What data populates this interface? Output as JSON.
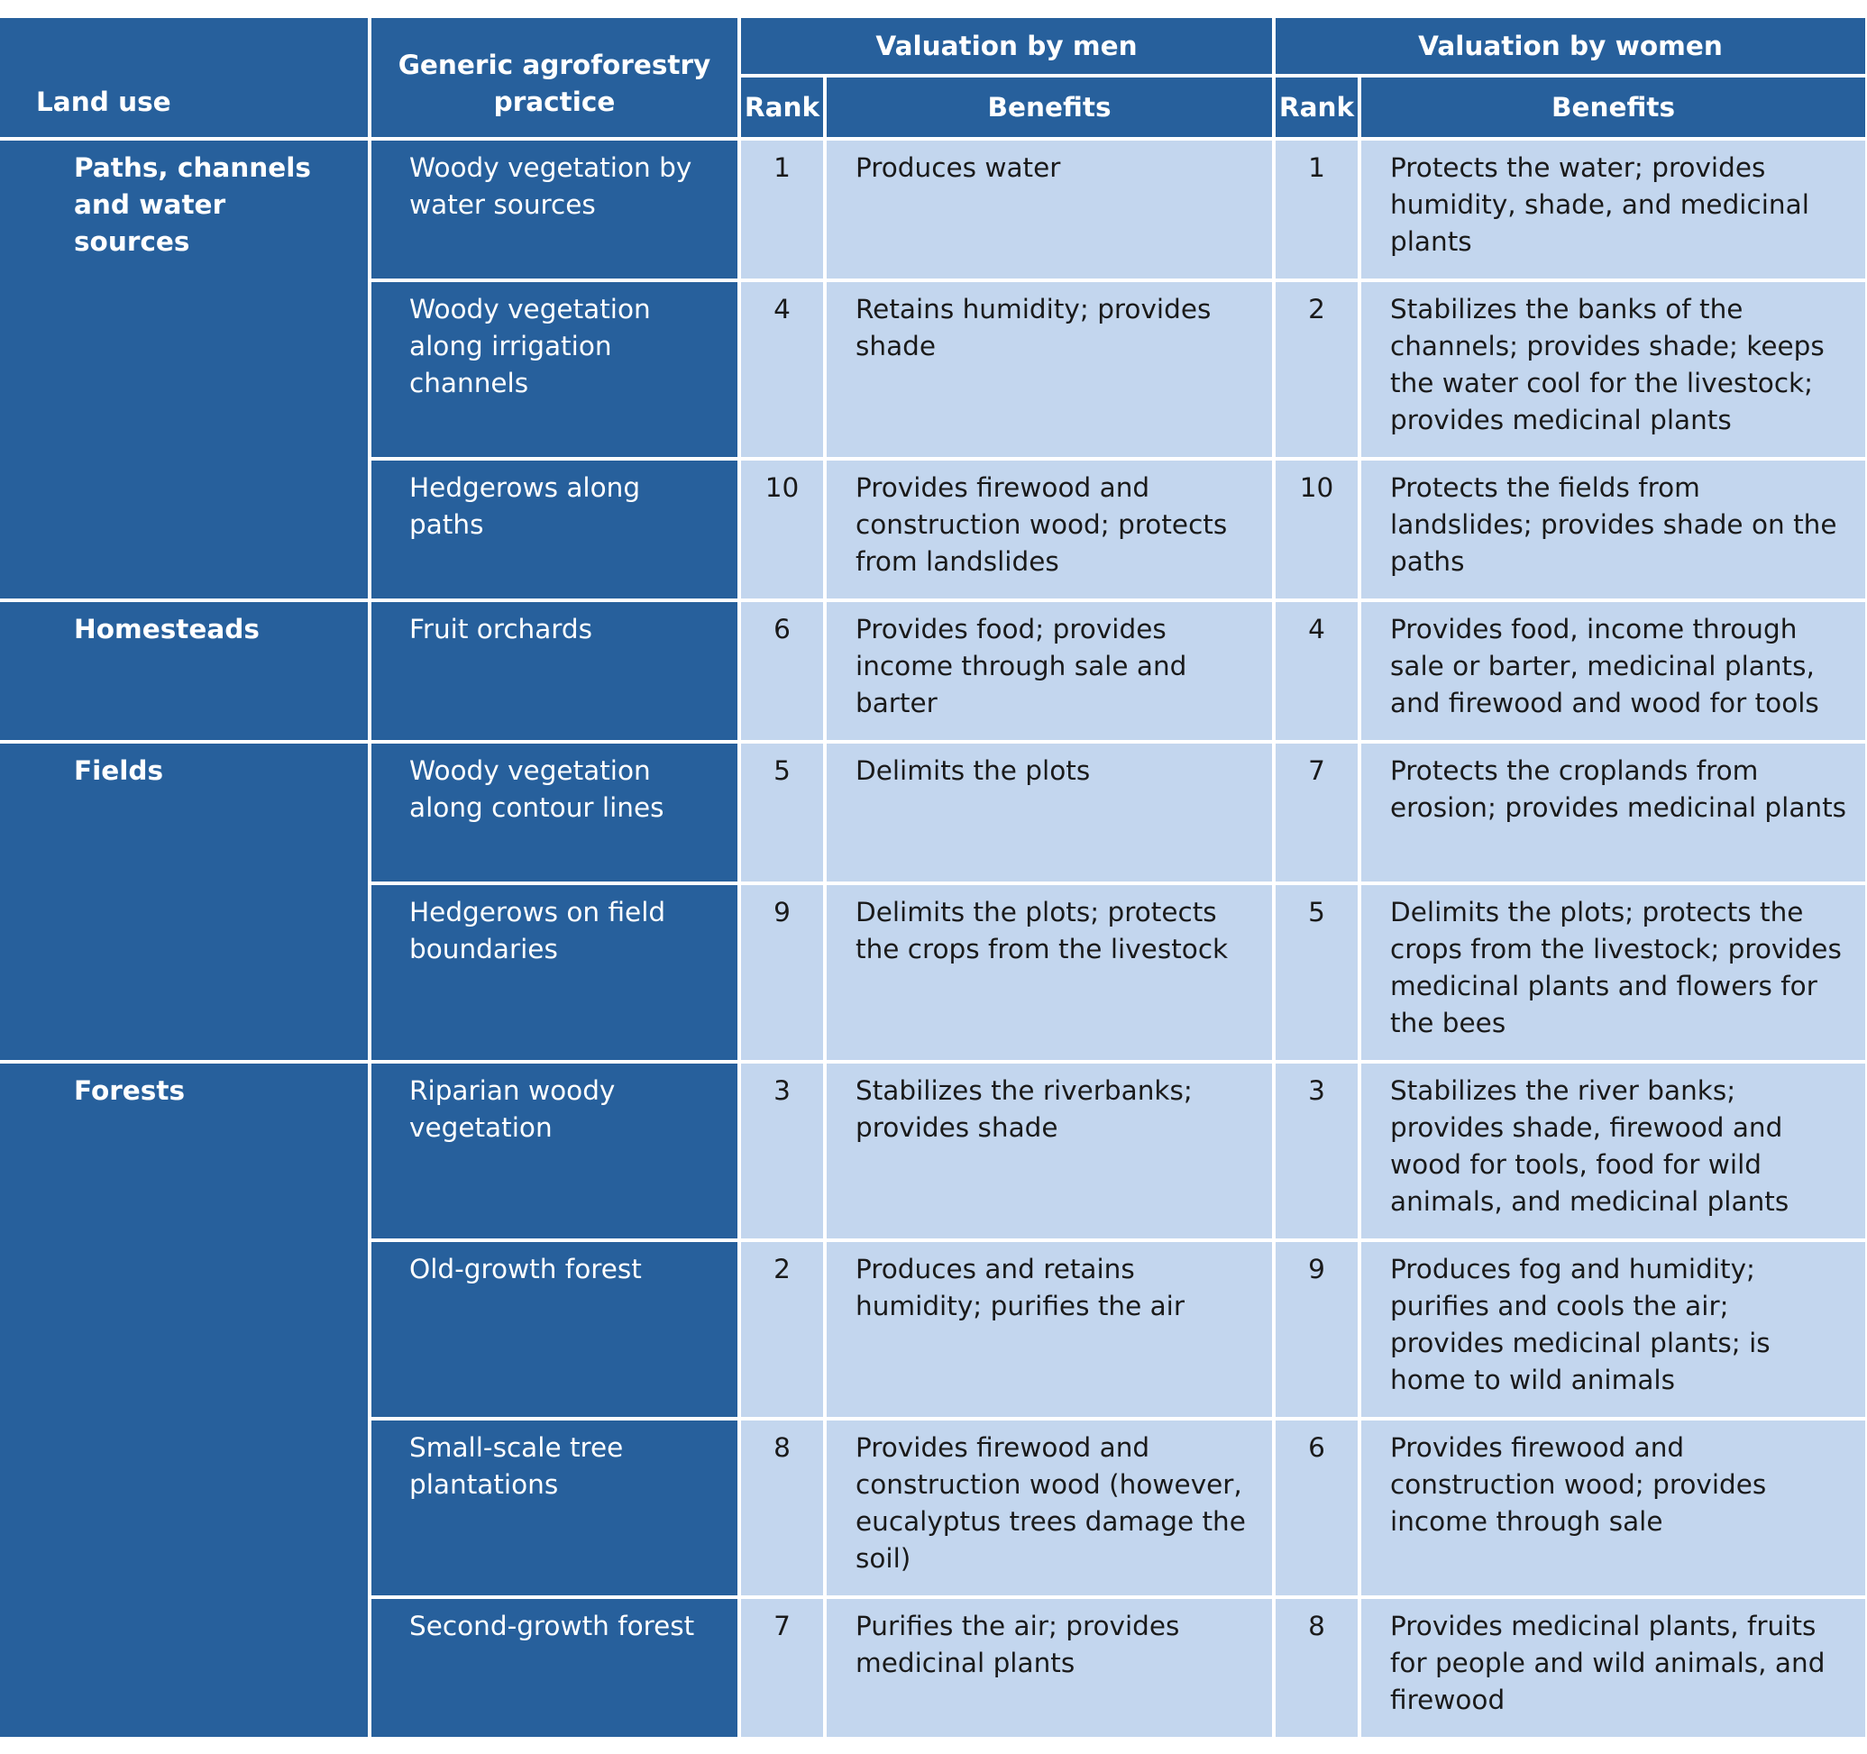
{
  "header": {
    "land_use": "Land use",
    "practice": "Generic agroforestry practice",
    "men_group": "Valuation by men",
    "women_group": "Valuation by women",
    "rank": "Rank",
    "benefits": "Benefits"
  },
  "rows": [
    {
      "land_use": "Paths, channels and water sources",
      "practice": "Woody vegetation by water sources",
      "men_rank": "1",
      "men_benefits": "Produces water",
      "women_rank": "1",
      "women_benefits": "Protects the water; provides humidity, shade, and medicinal plants"
    },
    {
      "practice": "Woody vegetation along irrigation channels",
      "men_rank": "4",
      "men_benefits": "Retains humidity; provides shade",
      "women_rank": "2",
      "women_benefits": "Stabilizes the banks of the channels; provides shade; keeps the water cool for the livestock; provides medicinal plants"
    },
    {
      "practice": "Hedgerows along paths",
      "men_rank": "10",
      "men_benefits": "Provides firewood and construction wood; protects from landslides",
      "women_rank": "10",
      "women_benefits": "Protects the fields from landslides; provides shade on the paths"
    },
    {
      "land_use": "Homesteads",
      "practice": "Fruit orchards",
      "men_rank": "6",
      "men_benefits": "Provides food; provides income through sale and barter",
      "women_rank": "4",
      "women_benefits": "Provides food, income through sale or barter, medicinal plants, and firewood and wood for tools"
    },
    {
      "land_use": "Fields",
      "practice": "Woody vegetation along contour lines",
      "men_rank": "5",
      "men_benefits": "Delimits the plots",
      "women_rank": "7",
      "women_benefits": "Protects the croplands from erosion; provides medicinal plants"
    },
    {
      "practice": "Hedgerows on field boundaries",
      "men_rank": "9",
      "men_benefits": "Delimits the plots; protects the crops from the livestock",
      "women_rank": "5",
      "women_benefits": "Delimits the plots; protects the crops from the livestock; provides medicinal plants and flowers for the bees"
    },
    {
      "land_use": "Forests",
      "practice": "Riparian woody vegetation",
      "men_rank": "3",
      "men_benefits": "Stabilizes the riverbanks; provides shade",
      "women_rank": "3",
      "women_benefits": "Stabilizes the river banks; provides shade, firewood and wood for tools, food for wild animals, and medicinal plants"
    },
    {
      "practice": "Old-growth forest",
      "men_rank": "2",
      "men_benefits": "Produces and retains humidity; purifies the air",
      "women_rank": "9",
      "women_benefits": "Produces fog and humidity; purifies and cools the air; provides medicinal plants; is home to wild animals"
    },
    {
      "practice": "Small-scale tree plantations",
      "men_rank": "8",
      "men_benefits": "Provides firewood and construction wood (however, eucalyptus trees damage the soil)",
      "women_rank": "6",
      "women_benefits": "Provides firewood and construction wood; provides income through sale"
    },
    {
      "practice": "Second-growth forest",
      "men_rank": "7",
      "men_benefits": "Purifies the air; provides medicinal plants",
      "women_rank": "8",
      "women_benefits": "Provides medicinal plants, fruits for people and wild animals, and firewood"
    }
  ]
}
